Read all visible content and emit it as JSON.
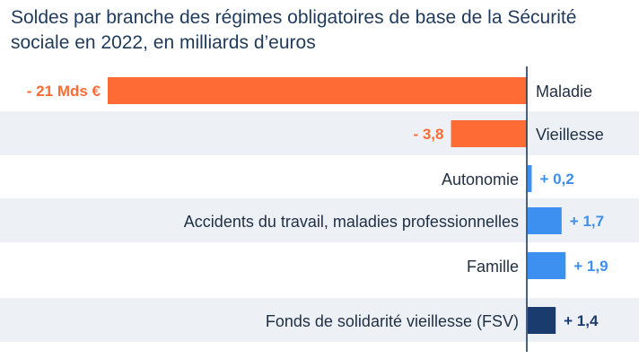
{
  "title": "Soldes par branche des régimes obligatoires de base de la Sécurité sociale en 2022, en milliards d’euros",
  "colors": {
    "negative": "#ff6b35",
    "positive": "#3d8ff0",
    "fsv": "#1a3b6e",
    "band": "#edf1f6",
    "axis": "#1f3a5a"
  },
  "chart_data": {
    "type": "bar",
    "orientation": "horizontal",
    "title": "Soldes par branche des régimes obligatoires de base de la Sécurité sociale en 2022, en milliards d’euros",
    "categories": [
      "Maladie",
      "Vieillesse",
      "Autonomie",
      "Accidents du travail, maladies professionnelles",
      "Famille",
      "Fonds de solidarité vieillesse (FSV)"
    ],
    "values": [
      -21,
      -3.8,
      0.2,
      1.7,
      1.9,
      1.4
    ],
    "value_labels": [
      "- 21 Mds €",
      "- 3,8",
      "+ 0,2",
      "+ 1,7",
      "+ 1,9",
      "+ 1,4"
    ],
    "grid": false
  }
}
